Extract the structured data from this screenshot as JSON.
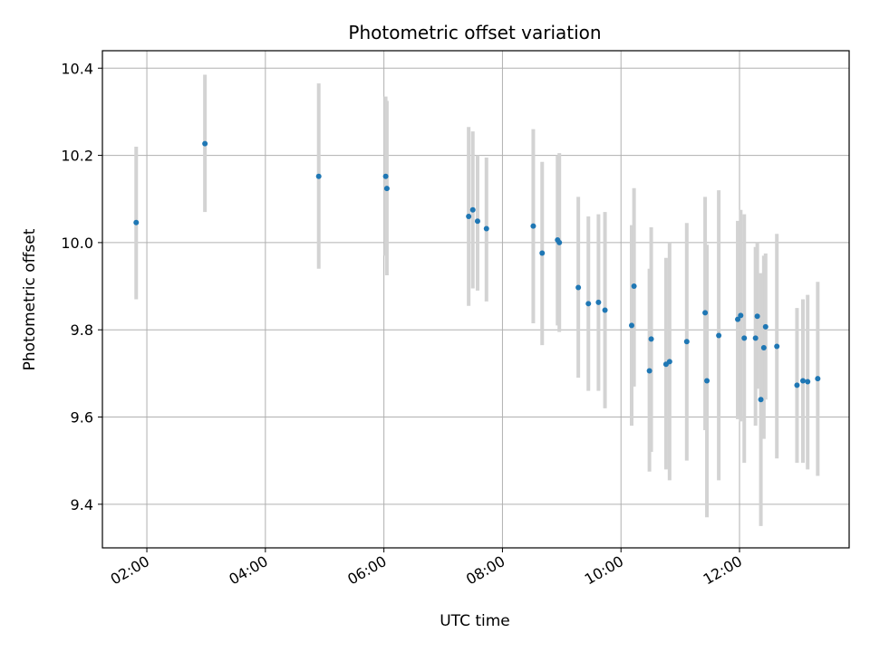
{
  "chart_data": {
    "type": "scatter",
    "title": "Photometric offset variation",
    "xlabel": "UTC time",
    "ylabel": "Photometric offset",
    "x_unit": "hours UTC",
    "xlim": [
      1.25,
      13.85
    ],
    "ylim": [
      9.3,
      10.44
    ],
    "x_ticks": [
      {
        "value": 2,
        "label": "02:00"
      },
      {
        "value": 4,
        "label": "04:00"
      },
      {
        "value": 6,
        "label": "06:00"
      },
      {
        "value": 8,
        "label": "08:00"
      },
      {
        "value": 10,
        "label": "10:00"
      },
      {
        "value": 12,
        "label": "12:00"
      }
    ],
    "y_ticks": [
      {
        "value": 9.4,
        "label": "9.4"
      },
      {
        "value": 9.6,
        "label": "9.6"
      },
      {
        "value": 9.8,
        "label": "9.8"
      },
      {
        "value": 10.0,
        "label": "10.0"
      },
      {
        "value": 10.2,
        "label": "10.2"
      },
      {
        "value": 10.4,
        "label": "10.4"
      }
    ],
    "grid": true,
    "colors": {
      "marker": "#1f77b4",
      "errorbar": "#d3d3d3",
      "grid": "#b0b0b0"
    },
    "points": [
      {
        "x": 1.82,
        "y": 10.046,
        "lo": 9.87,
        "hi": 10.22
      },
      {
        "x": 2.98,
        "y": 10.227,
        "lo": 10.07,
        "hi": 10.385
      },
      {
        "x": 4.9,
        "y": 10.152,
        "lo": 9.94,
        "hi": 10.365
      },
      {
        "x": 6.03,
        "y": 10.152,
        "lo": 9.97,
        "hi": 10.335
      },
      {
        "x": 6.05,
        "y": 10.124,
        "lo": 9.925,
        "hi": 10.325
      },
      {
        "x": 7.43,
        "y": 10.06,
        "lo": 9.855,
        "hi": 10.265
      },
      {
        "x": 7.5,
        "y": 10.075,
        "lo": 9.895,
        "hi": 10.255
      },
      {
        "x": 7.58,
        "y": 10.049,
        "lo": 9.89,
        "hi": 10.2
      },
      {
        "x": 7.73,
        "y": 10.032,
        "lo": 9.865,
        "hi": 10.195
      },
      {
        "x": 8.52,
        "y": 10.038,
        "lo": 9.815,
        "hi": 10.26
      },
      {
        "x": 8.67,
        "y": 9.976,
        "lo": 9.765,
        "hi": 10.185
      },
      {
        "x": 8.93,
        "y": 10.006,
        "lo": 9.81,
        "hi": 10.2
      },
      {
        "x": 8.96,
        "y": 10.0,
        "lo": 9.795,
        "hi": 10.205
      },
      {
        "x": 9.28,
        "y": 9.897,
        "lo": 9.69,
        "hi": 10.105
      },
      {
        "x": 9.45,
        "y": 9.86,
        "lo": 9.66,
        "hi": 10.06
      },
      {
        "x": 9.62,
        "y": 9.863,
        "lo": 9.66,
        "hi": 10.065
      },
      {
        "x": 9.73,
        "y": 9.845,
        "lo": 9.62,
        "hi": 10.07
      },
      {
        "x": 10.18,
        "y": 9.81,
        "lo": 9.58,
        "hi": 10.04
      },
      {
        "x": 10.22,
        "y": 9.9,
        "lo": 9.67,
        "hi": 10.125
      },
      {
        "x": 10.48,
        "y": 9.706,
        "lo": 9.475,
        "hi": 9.94
      },
      {
        "x": 10.51,
        "y": 9.779,
        "lo": 9.52,
        "hi": 10.035
      },
      {
        "x": 10.76,
        "y": 9.721,
        "lo": 9.48,
        "hi": 9.965
      },
      {
        "x": 10.82,
        "y": 9.727,
        "lo": 9.455,
        "hi": 10.0
      },
      {
        "x": 11.11,
        "y": 9.773,
        "lo": 9.5,
        "hi": 10.045
      },
      {
        "x": 11.42,
        "y": 9.839,
        "lo": 9.57,
        "hi": 10.105
      },
      {
        "x": 11.45,
        "y": 9.683,
        "lo": 9.37,
        "hi": 9.995
      },
      {
        "x": 11.65,
        "y": 9.787,
        "lo": 9.455,
        "hi": 10.12
      },
      {
        "x": 11.97,
        "y": 9.824,
        "lo": 9.595,
        "hi": 10.05
      },
      {
        "x": 12.02,
        "y": 9.833,
        "lo": 9.59,
        "hi": 10.075
      },
      {
        "x": 12.08,
        "y": 9.781,
        "lo": 9.495,
        "hi": 10.065
      },
      {
        "x": 12.27,
        "y": 9.781,
        "lo": 9.58,
        "hi": 9.99
      },
      {
        "x": 12.3,
        "y": 9.831,
        "lo": 9.665,
        "hi": 10.0
      },
      {
        "x": 12.36,
        "y": 9.64,
        "lo": 9.35,
        "hi": 9.93
      },
      {
        "x": 12.41,
        "y": 9.759,
        "lo": 9.55,
        "hi": 9.97
      },
      {
        "x": 12.44,
        "y": 9.807,
        "lo": 9.64,
        "hi": 9.975
      },
      {
        "x": 12.63,
        "y": 9.762,
        "lo": 9.505,
        "hi": 10.02
      },
      {
        "x": 12.97,
        "y": 9.673,
        "lo": 9.495,
        "hi": 9.85
      },
      {
        "x": 13.07,
        "y": 9.683,
        "lo": 9.495,
        "hi": 9.87
      },
      {
        "x": 13.15,
        "y": 9.681,
        "lo": 9.48,
        "hi": 9.88
      },
      {
        "x": 13.32,
        "y": 9.688,
        "lo": 9.465,
        "hi": 9.91
      }
    ]
  }
}
